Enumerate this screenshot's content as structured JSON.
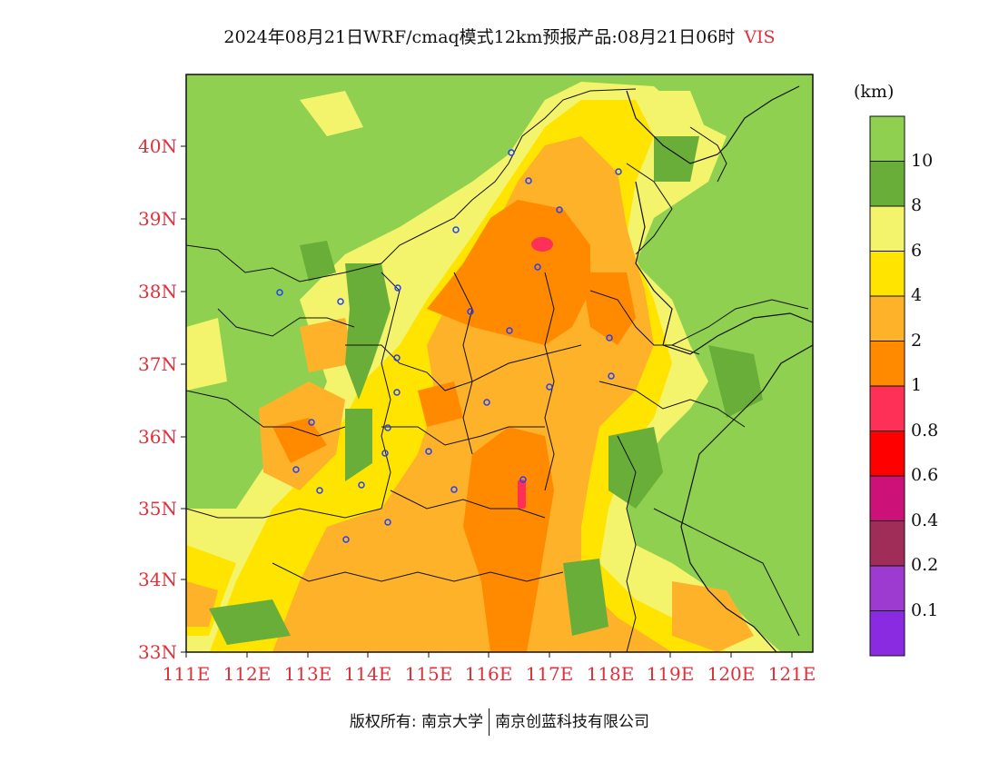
{
  "title": {
    "main": "2024年08月21日WRF/cmaq模式12km预报产品:08月21日06时",
    "variable": "VIS"
  },
  "colorbar": {
    "unit": "(km)",
    "bands": [
      {
        "label": "10",
        "color": "#8fd050"
      },
      {
        "label": "8",
        "color": "#6aae3a"
      },
      {
        "label": "6",
        "color": "#f3f36c"
      },
      {
        "label": "4",
        "color": "#ffe400"
      },
      {
        "label": "2",
        "color": "#fdb22a"
      },
      {
        "label": "1",
        "color": "#ff8a00"
      },
      {
        "label": "0.8",
        "color": "#ff3058"
      },
      {
        "label": "0.6",
        "color": "#ff0000"
      },
      {
        "label": "0.4",
        "color": "#cc1278"
      },
      {
        "label": "0.2",
        "color": "#a02c58"
      },
      {
        "label": "0.1",
        "color": "#9d3ad0"
      },
      {
        "label": "",
        "color": "#8a2be2"
      }
    ]
  },
  "axes": {
    "lat_labels": [
      "40N",
      "39N",
      "38N",
      "37N",
      "36N",
      "35N",
      "34N",
      "33N"
    ],
    "lon_labels": [
      "111E",
      "112E",
      "113E",
      "114E",
      "115E",
      "116E",
      "117E",
      "118E",
      "119E",
      "120E",
      "121E"
    ]
  },
  "copyright": {
    "left": "版权所有: 南京大学",
    "right": "南京创蓝科技有限公司"
  },
  "stations_count_note": ""
}
